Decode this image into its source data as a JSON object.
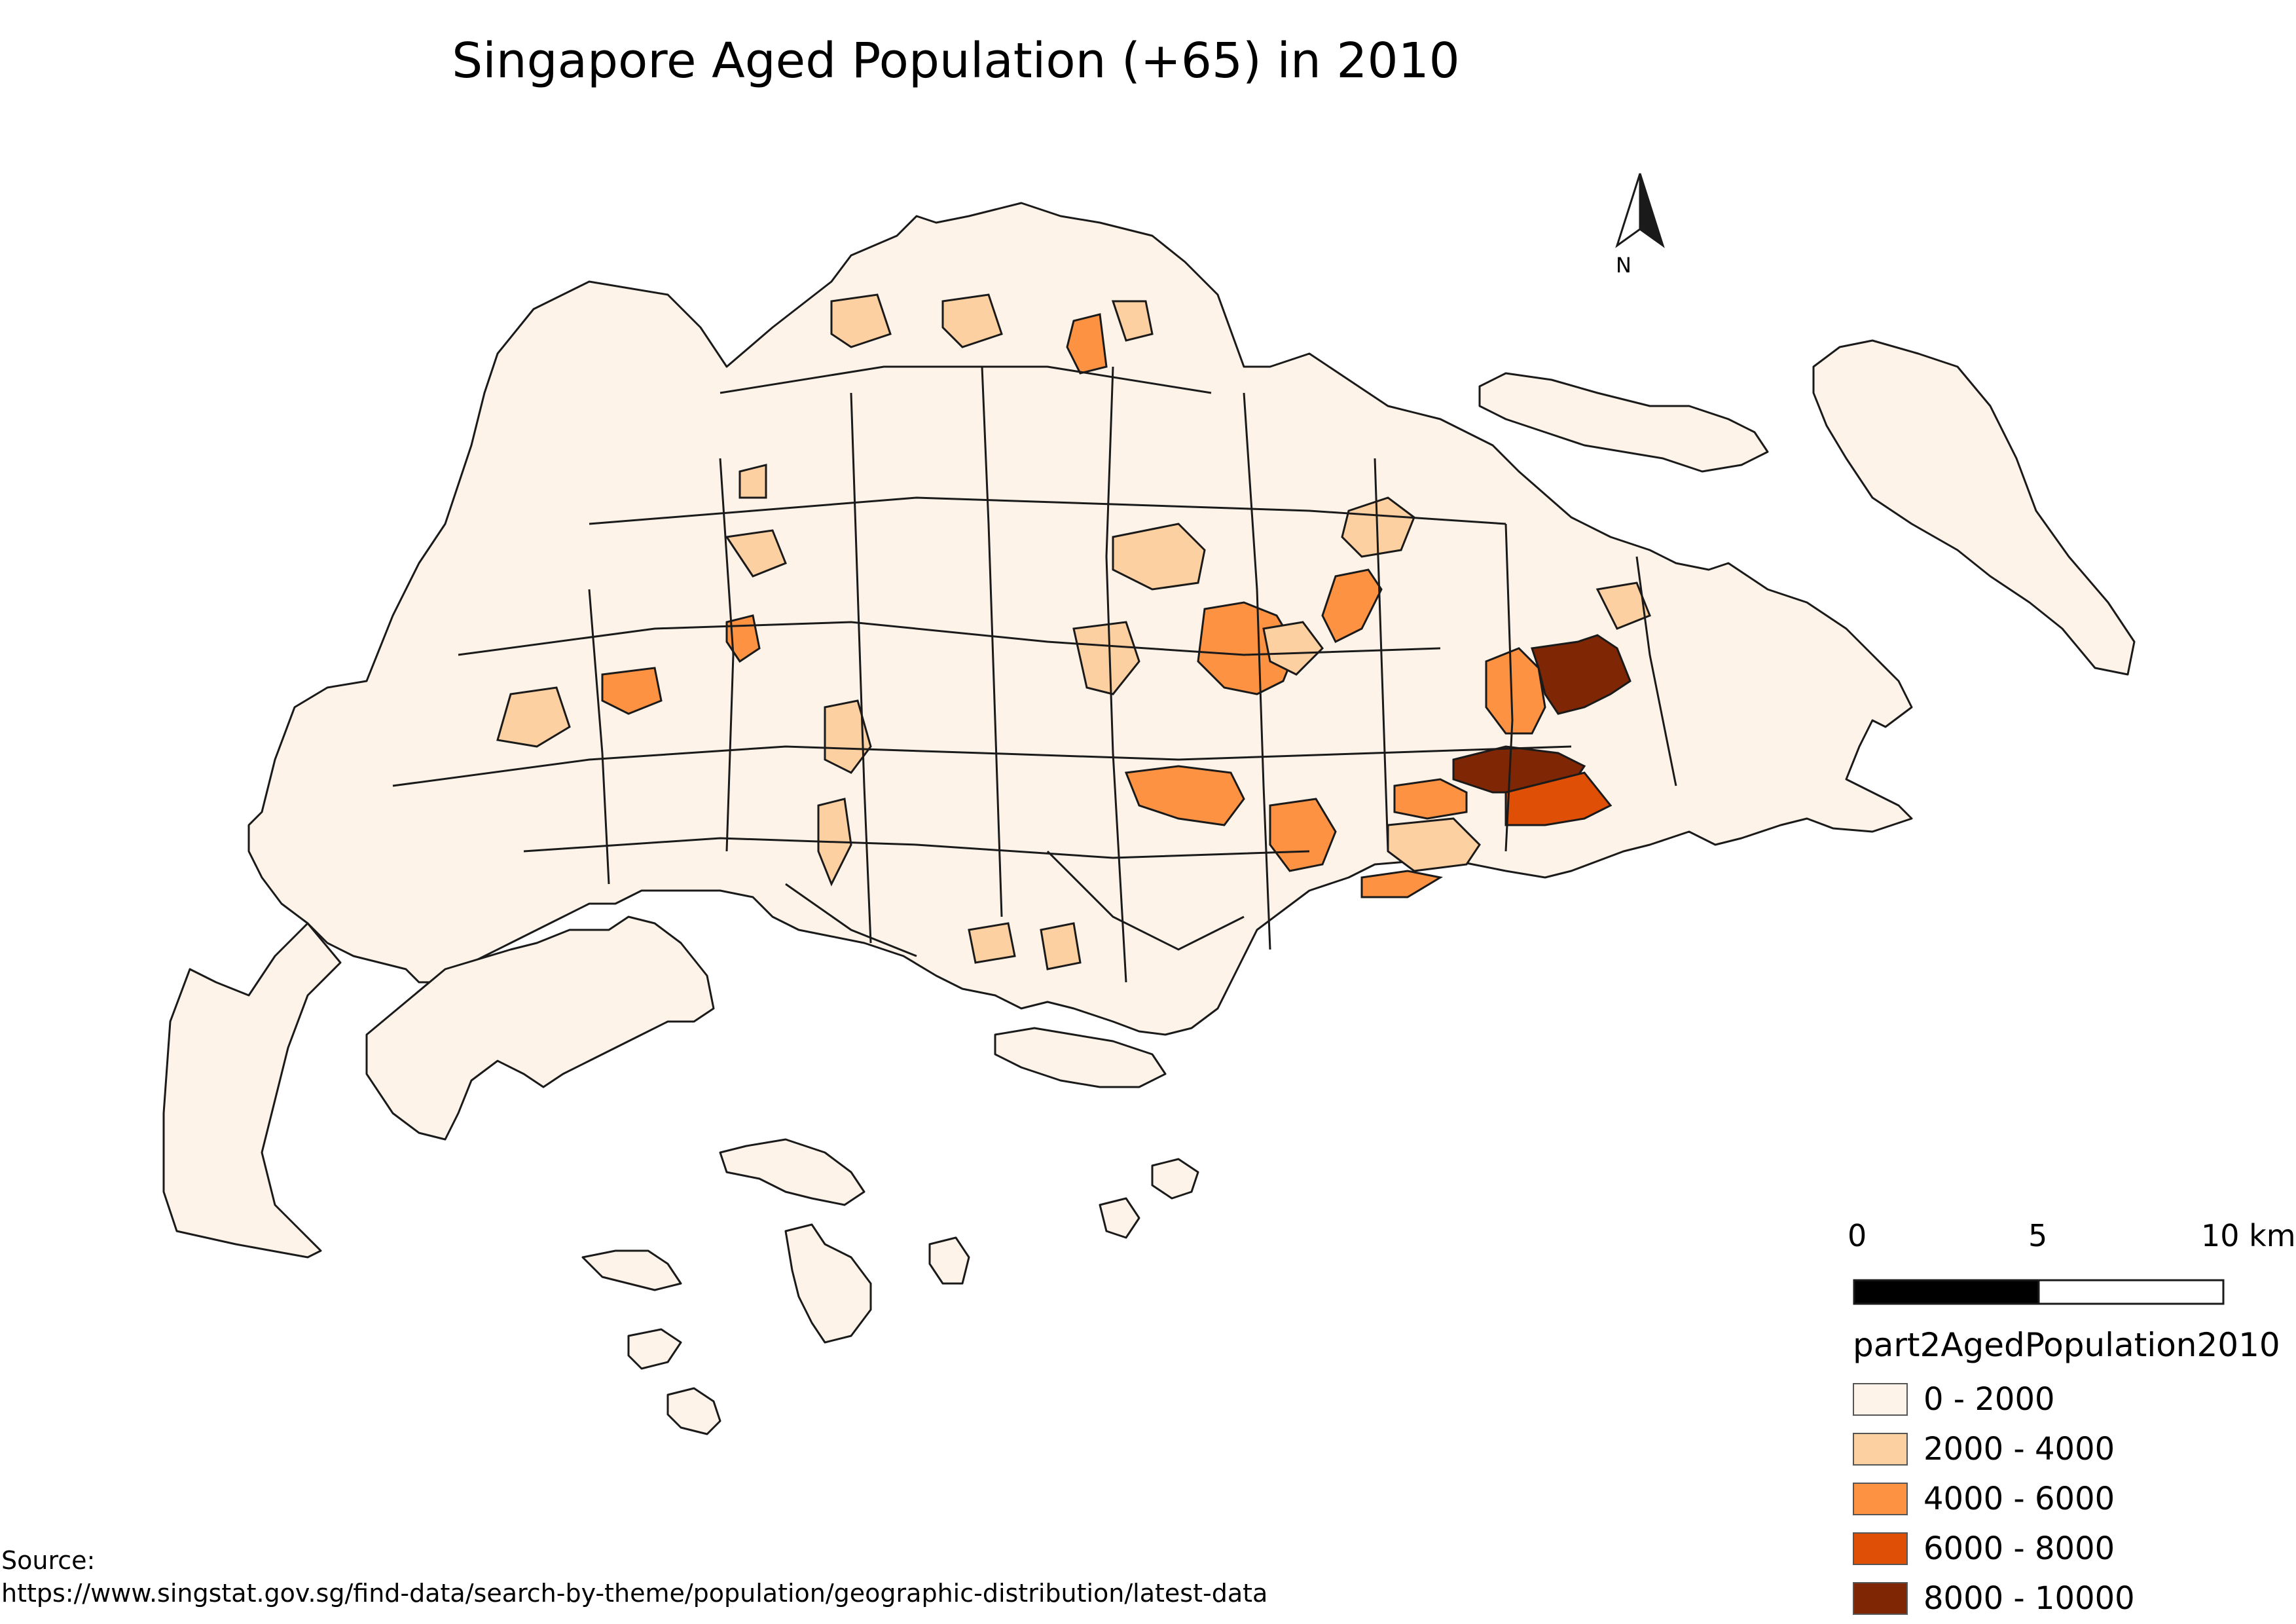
{
  "title": "Singapore Aged Population (+65) in 2010",
  "north_arrow": {
    "label": "N",
    "icon": "north-arrow-icon"
  },
  "scale_bar": {
    "labels": [
      "0",
      "5",
      "10 km"
    ]
  },
  "legend": {
    "title": "part2AgedPopulation2010",
    "classes": [
      {
        "label": "0 - 2000",
        "color": "#fef3e8"
      },
      {
        "label": "2000 - 4000",
        "color": "#fdd0a2"
      },
      {
        "label": "4000 - 6000",
        "color": "#fd9243"
      },
      {
        "label": "6000 - 8000",
        "color": "#df4f05"
      },
      {
        "label": "8000 - 10000",
        "color": "#7f2704"
      }
    ]
  },
  "source": {
    "label": "Source:",
    "url": "https://www.singstat.gov.sg/find-data/search-by-theme/population/geographic-distribution/latest-data"
  },
  "colors": {
    "outline": "#1a1a1a",
    "background": "#ffffff"
  }
}
